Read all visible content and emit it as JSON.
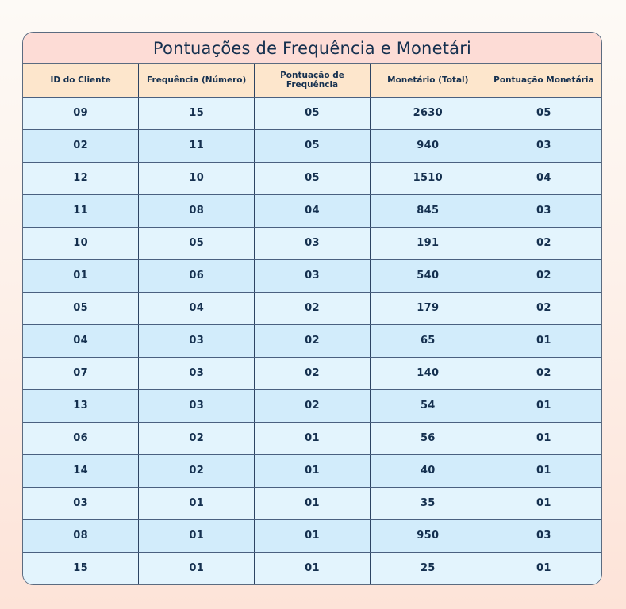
{
  "table": {
    "title": "Pontuações de Frequência e Monetári",
    "headers": [
      "ID do Cliente",
      "Frequência (Número)",
      "Pontuação de Frequência",
      "Monetário (Total)",
      "Pontuação Monetária"
    ],
    "rows": [
      [
        "09",
        "15",
        "05",
        "2630",
        "05"
      ],
      [
        "02",
        "11",
        "05",
        "940",
        "03"
      ],
      [
        "12",
        "10",
        "05",
        "1510",
        "04"
      ],
      [
        "11",
        "08",
        "04",
        "845",
        "03"
      ],
      [
        "10",
        "05",
        "03",
        "191",
        "02"
      ],
      [
        "01",
        "06",
        "03",
        "540",
        "02"
      ],
      [
        "05",
        "04",
        "02",
        "179",
        "02"
      ],
      [
        "04",
        "03",
        "02",
        "65",
        "01"
      ],
      [
        "07",
        "03",
        "02",
        "140",
        "02"
      ],
      [
        "13",
        "03",
        "02",
        "54",
        "01"
      ],
      [
        "06",
        "02",
        "01",
        "56",
        "01"
      ],
      [
        "14",
        "02",
        "01",
        "40",
        "01"
      ],
      [
        "03",
        "01",
        "01",
        "35",
        "01"
      ],
      [
        "08",
        "01",
        "01",
        "950",
        "03"
      ],
      [
        "15",
        "01",
        "01",
        "25",
        "01"
      ]
    ]
  },
  "colors": {
    "title_bg": "#fddcd6",
    "header_bg": "#fde6cc",
    "row_light": "#e3f4fd",
    "row_dark": "#d2ecfb",
    "text": "#15304f",
    "border": "#2d4463"
  }
}
